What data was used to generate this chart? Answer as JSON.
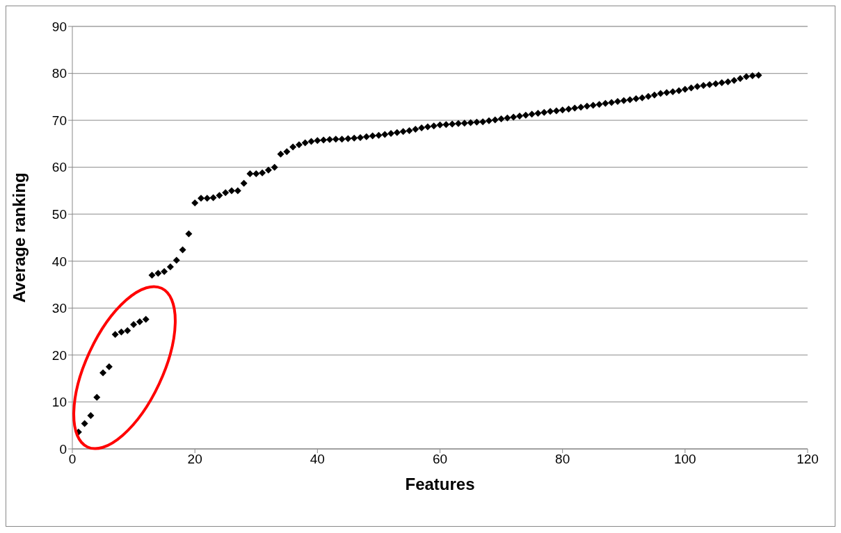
{
  "chart_data": {
    "type": "scatter",
    "xlabel": "Features",
    "ylabel": "Average ranking",
    "x": [
      1,
      2,
      3,
      4,
      5,
      6,
      7,
      8,
      9,
      10,
      11,
      12,
      13,
      14,
      15,
      16,
      17,
      18,
      19,
      20,
      21,
      22,
      23,
      24,
      25,
      26,
      27,
      28,
      29,
      30,
      31,
      32,
      33,
      34,
      35,
      36,
      37,
      38,
      39,
      40,
      41,
      42,
      43,
      44,
      45,
      46,
      47,
      48,
      49,
      50,
      51,
      52,
      53,
      54,
      55,
      56,
      57,
      58,
      59,
      60,
      61,
      62,
      63,
      64,
      65,
      66,
      67,
      68,
      69,
      70,
      71,
      72,
      73,
      74,
      75,
      76,
      77,
      78,
      79,
      80,
      81,
      82,
      83,
      84,
      85,
      86,
      87,
      88,
      89,
      90,
      91,
      92,
      93,
      94,
      95,
      96,
      97,
      98,
      99,
      100,
      101,
      102,
      103,
      104,
      105,
      106,
      107,
      108,
      109,
      110,
      111,
      112
    ],
    "series": [
      {
        "color": "#000000",
        "values": [
          3.6,
          5.4,
          7.1,
          11.0,
          16.2,
          17.5,
          24.4,
          24.9,
          25.2,
          26.5,
          27.1,
          27.6,
          37.0,
          37.4,
          37.8,
          38.8,
          40.2,
          42.4,
          45.8,
          52.4,
          53.4,
          53.4,
          53.5,
          54.0,
          54.6,
          55.0,
          55.0,
          56.6,
          58.6,
          58.6,
          58.8,
          59.4,
          60.0,
          62.8,
          63.3,
          64.3,
          64.8,
          65.2,
          65.5,
          65.7,
          65.8,
          65.9,
          66.0,
          66.0,
          66.1,
          66.2,
          66.3,
          66.5,
          66.7,
          66.8,
          67.0,
          67.2,
          67.4,
          67.6,
          67.8,
          68.1,
          68.4,
          68.6,
          68.8,
          69.0,
          69.1,
          69.2,
          69.3,
          69.4,
          69.5,
          69.6,
          69.7,
          69.9,
          70.1,
          70.3,
          70.5,
          70.7,
          70.9,
          71.1,
          71.3,
          71.5,
          71.7,
          71.9,
          72.0,
          72.2,
          72.4,
          72.6,
          72.8,
          73.0,
          73.2,
          73.4,
          73.6,
          73.8,
          74.0,
          74.2,
          74.4,
          74.6,
          74.8,
          75.1,
          75.4,
          75.7,
          75.9,
          76.1,
          76.3,
          76.6,
          76.9,
          77.2,
          77.4,
          77.6,
          77.8,
          78.0,
          78.2,
          78.5,
          78.9,
          79.3,
          79.5,
          79.6
        ]
      }
    ],
    "xlim": [
      0,
      120
    ],
    "xticks": [
      0,
      20,
      40,
      60,
      80,
      100,
      120
    ],
    "ylim": [
      0,
      90
    ],
    "yticks": [
      0,
      10,
      20,
      30,
      40,
      50,
      60,
      70,
      80,
      90
    ],
    "grid": "y",
    "legend": false,
    "marker": "diamond"
  }
}
